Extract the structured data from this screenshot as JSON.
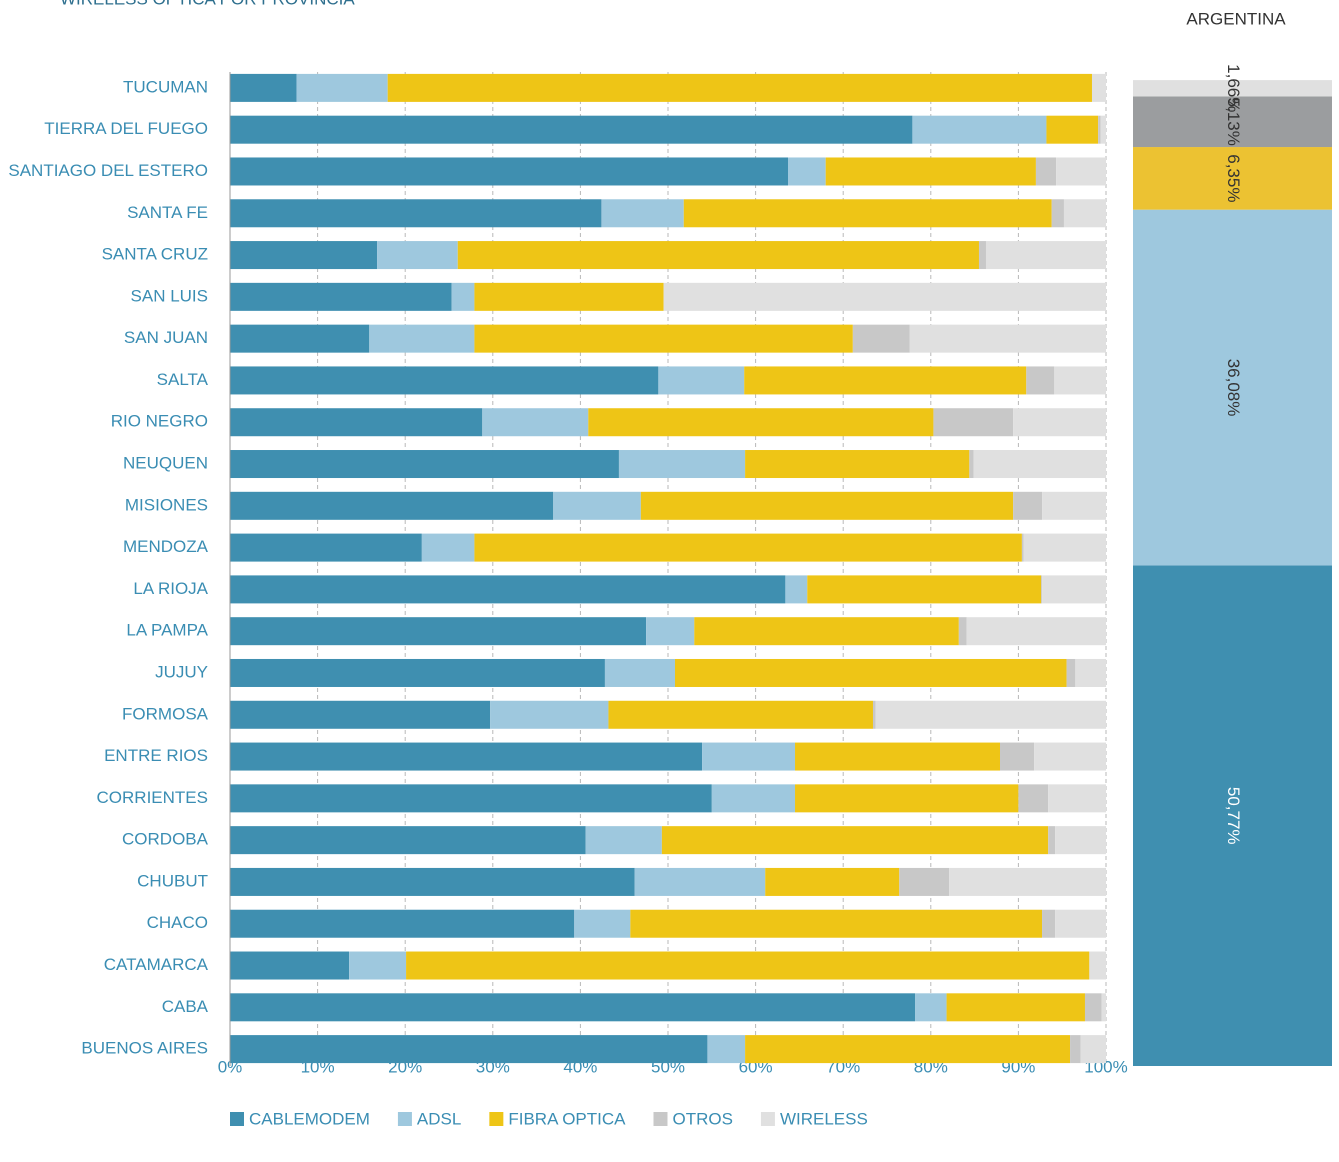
{
  "chart_data": [
    {
      "type": "stacked-barh",
      "title": "WIRELESS OPTICA POR PROVINCIA",
      "categories": [
        "TUCUMAN",
        "TIERRA DEL FUEGO",
        "SANTIAGO DEL ESTERO",
        "SANTA FE",
        "SANTA CRUZ",
        "SAN LUIS",
        "SAN JUAN",
        "SALTA",
        "RIO NEGRO",
        "NEUQUEN",
        "MISIONES",
        "MENDOZA",
        "LA RIOJA",
        "LA PAMPA",
        "JUJUY",
        "FORMOSA",
        "ENTRE RIOS",
        "CORRIENTES",
        "CORDOBA",
        "CHUBUT",
        "CHACO",
        "CATAMARCA",
        "CABA",
        "BUENOS AIRES"
      ],
      "series": [
        {
          "name": "CABLEMODEM",
          "color": "#3f8fb0",
          "values": [
            7.6,
            77.9,
            63.7,
            42.4,
            16.8,
            25.3,
            15.9,
            48.9,
            28.8,
            44.4,
            36.9,
            21.9,
            63.4,
            47.5,
            42.8,
            29.7,
            53.9,
            55.0,
            40.6,
            46.2,
            39.3,
            13.6,
            78.2,
            54.5
          ]
        },
        {
          "name": "ADSL",
          "color": "#9ec8de",
          "values": [
            10.4,
            15.3,
            4.3,
            9.4,
            9.2,
            2.6,
            12.0,
            9.8,
            12.1,
            14.4,
            10.0,
            6.0,
            2.5,
            5.5,
            8.0,
            13.5,
            10.6,
            9.5,
            8.7,
            14.9,
            6.4,
            6.5,
            3.6,
            4.3
          ]
        },
        {
          "name": "FIBRA OPTICA",
          "color": "#eec516",
          "values": [
            80.4,
            5.9,
            24.0,
            42.0,
            59.5,
            21.6,
            43.2,
            32.2,
            39.4,
            25.6,
            42.5,
            62.5,
            26.7,
            30.2,
            44.7,
            30.2,
            23.4,
            25.5,
            44.1,
            15.3,
            47.0,
            78.0,
            15.8,
            37.1
          ]
        },
        {
          "name": "OTROS",
          "color": "#c8c8c8",
          "values": [
            0,
            0.3,
            2.3,
            1.4,
            0.8,
            0,
            6.5,
            3.2,
            9.1,
            0.5,
            3.3,
            0.2,
            0.1,
            0.9,
            1.0,
            0.3,
            3.9,
            3.4,
            0.8,
            5.7,
            1.5,
            0,
            1.9,
            1.2
          ]
        },
        {
          "name": "WIRELESS",
          "color": "#e0e0e0",
          "values": [
            1.6,
            0.6,
            5.7,
            4.8,
            13.7,
            50.5,
            22.4,
            5.9,
            10.6,
            15.1,
            7.3,
            9.4,
            7.3,
            15.9,
            3.5,
            26.3,
            8.2,
            6.6,
            5.8,
            17.9,
            5.8,
            1.9,
            0.5,
            2.9
          ]
        }
      ],
      "xlim": [
        0,
        100
      ],
      "xticks": [
        {
          "value": 0,
          "label": "0%"
        },
        {
          "value": 10,
          "label": "10%"
        },
        {
          "value": 20,
          "label": "20%"
        },
        {
          "value": 30,
          "label": "30%"
        },
        {
          "value": 40,
          "label": "40%"
        },
        {
          "value": 50,
          "label": "50%"
        },
        {
          "value": 60,
          "label": "60%"
        },
        {
          "value": 70,
          "label": "70%"
        },
        {
          "value": 80,
          "label": "80%"
        },
        {
          "value": 90,
          "label": "90%"
        },
        {
          "value": 100,
          "label": "100%"
        }
      ],
      "grid": true,
      "legend": "bottom"
    },
    {
      "type": "stacked-column",
      "title": "ARGENTINA",
      "series": [
        {
          "name": "CABLEMODEM",
          "color": "#3f8fb0",
          "values": [
            50.77
          ],
          "value_labels": [
            "50,77%"
          ]
        },
        {
          "name": "ADSL",
          "color": "#9ec8de",
          "values": [
            36.08
          ],
          "value_labels": [
            "36,08%"
          ]
        },
        {
          "name": "FIBRA OPTICA",
          "color": "#ecc232",
          "values": [
            6.35
          ],
          "value_labels": [
            "6,35%"
          ]
        },
        {
          "name": "OTROS",
          "color": "#9b9d9f",
          "values": [
            5.13
          ],
          "value_labels": [
            "5,13%"
          ]
        },
        {
          "name": "WIRELESS",
          "color": "#e0e0e0",
          "values": [
            1.66
          ],
          "value_labels": [
            "1,66%"
          ]
        }
      ],
      "ylim": [
        0,
        100
      ]
    }
  ]
}
